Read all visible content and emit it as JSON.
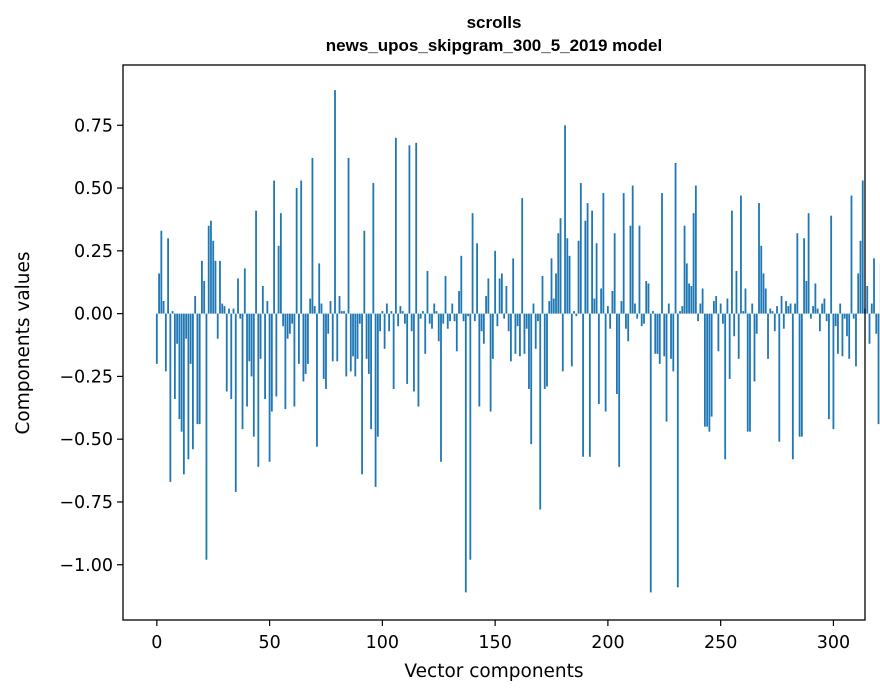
{
  "chart_data": {
    "type": "bar",
    "title": "scrolls",
    "subtitle": "news_upos_skipgram_300_5_2019 model",
    "xlabel": "Vector components",
    "ylabel": "Components values",
    "xlim": [
      -15,
      314
    ],
    "ylim": [
      -1.22,
      0.99
    ],
    "xticks": [
      0,
      50,
      100,
      150,
      200,
      250,
      300
    ],
    "xtick_labels": [
      "0",
      "50",
      "100",
      "150",
      "200",
      "250",
      "300"
    ],
    "yticks": [
      0.75,
      0.5,
      0.25,
      0.0,
      -0.25,
      -0.5,
      -0.75,
      -1.0
    ],
    "ytick_labels": [
      "0.75",
      "0.50",
      "0.25",
      "0.00",
      "−0.25",
      "−0.50",
      "−0.75",
      "−1.00"
    ],
    "bar_color": "#1f77b4",
    "grid": false,
    "series": [
      {
        "name": "scrolls",
        "values": [
          -0.2,
          0.16,
          0.33,
          0.05,
          -0.23,
          0.3,
          -0.67,
          0.01,
          -0.34,
          -0.12,
          -0.42,
          -0.47,
          -0.64,
          -0.1,
          -0.58,
          -0.2,
          -0.54,
          0.07,
          -0.44,
          -0.44,
          0.21,
          0.13,
          -0.98,
          0.35,
          0.37,
          0.29,
          0.21,
          -0.1,
          0.21,
          0.04,
          0.03,
          -0.31,
          0.02,
          -0.34,
          0.02,
          -0.71,
          0.14,
          -0.02,
          -0.46,
          0.18,
          -0.37,
          -0.19,
          -0.25,
          -0.49,
          0.41,
          -0.61,
          -0.18,
          0.11,
          -0.34,
          0.05,
          -0.59,
          -0.39,
          0.53,
          -0.33,
          0.27,
          0.4,
          -0.05,
          -0.38,
          -0.1,
          -0.08,
          -0.04,
          -0.37,
          0.5,
          -0.2,
          0.53,
          -0.27,
          -0.24,
          -0.2,
          0.06,
          0.62,
          0.03,
          -0.53,
          0.2,
          0.04,
          -0.26,
          -0.3,
          -0.08,
          0.05,
          -0.19,
          0.89,
          -0.19,
          0.07,
          0.01,
          0.01,
          -0.25,
          0.62,
          -0.23,
          -0.17,
          -0.25,
          -0.18,
          -0.04,
          -0.64,
          0.33,
          -0.18,
          -0.24,
          -0.46,
          0.52,
          -0.69,
          -0.49,
          -0.07,
          0.01,
          -0.14,
          0.04,
          -0.07,
          0.01,
          -0.3,
          0.7,
          -0.05,
          0.03,
          0.01,
          -0.04,
          -0.28,
          0.67,
          -0.07,
          -0.31,
          0.68,
          -0.37,
          -0.02,
          0.01,
          -0.16,
          0.17,
          -0.04,
          -0.06,
          0.04,
          0.01,
          -0.11,
          -0.59,
          -0.04,
          0.15,
          -0.06,
          -0.03,
          0.04,
          -0.03,
          -0.15,
          0.09,
          0.23,
          -0.03,
          -1.11,
          -0.01,
          -0.98,
          0.4,
          -0.03,
          0.28,
          -0.37,
          -0.07,
          -0.12,
          0.07,
          0.14,
          -0.39,
          -0.18,
          0.25,
          -0.05,
          0.14,
          0.16,
          -0.02,
          0.11,
          -0.07,
          -0.19,
          0.22,
          -0.16,
          -0.05,
          -0.17,
          0.46,
          -0.16,
          -0.06,
          -0.3,
          -0.52,
          0.04,
          -0.14,
          -0.03,
          -0.78,
          0.15,
          -0.3,
          -0.29,
          0.05,
          0.22,
          0.06,
          0.16,
          0.32,
          0.38,
          -0.23,
          0.75,
          0.3,
          0.23,
          -0.21,
          0.01,
          -0.01,
          0.29,
          0.52,
          -0.57,
          0.37,
          0.44,
          -0.57,
          0.41,
          0.06,
          0.28,
          -0.36,
          0.1,
          0.48,
          -0.39,
          0.03,
          -0.06,
          0.09,
          0.32,
          -0.32,
          -0.61,
          0.05,
          0.48,
          -0.06,
          -0.11,
          0.35,
          0.51,
          0.04,
          -0.02,
          0.35,
          -0.05,
          -0.04,
          0.13,
          0.12,
          -1.11,
          0.01,
          -0.16,
          -0.16,
          -0.2,
          0.48,
          -0.17,
          -0.43,
          0.04,
          -0.18,
          -0.23,
          0.6,
          -1.09,
          0.01,
          0.03,
          0.35,
          0.2,
          0.12,
          0.11,
          0.4,
          0.51,
          -0.03,
          0.04,
          0.1,
          -0.45,
          -0.45,
          -0.47,
          -0.41,
          0.05,
          0.07,
          -0.15,
          0.04,
          -0.04,
          -0.58,
          0.06,
          -0.26,
          0.41,
          -0.09,
          0.17,
          -0.18,
          0.47,
          0.01,
          0.1,
          -0.47,
          -0.47,
          0.04,
          -0.27,
          -0.08,
          0.44,
          0.27,
          0.16,
          0.1,
          -0.18,
          0.02,
          0.01,
          -0.07,
          0.03,
          -0.51,
          0.07,
          -0.06,
          0.05,
          0.03,
          0.04,
          -0.58,
          0.04,
          0.32,
          -0.49,
          -0.49,
          0.3,
          0.13,
          0.4,
          -0.02,
          0.03,
          0.12,
          0.02,
          -0.07,
          0.04,
          0.06,
          -0.03,
          -0.42,
          0.39,
          -0.46,
          -0.05,
          -0.16,
          0.04,
          -0.17,
          -0.02,
          -0.09,
          -0.18,
          0.47,
          -0.02,
          -0.21,
          0.16,
          0.29,
          0.53,
          0.02,
          0.11,
          -0.12,
          0.04,
          0.22,
          -0.08,
          -0.44,
          0.2
        ]
      }
    ]
  }
}
